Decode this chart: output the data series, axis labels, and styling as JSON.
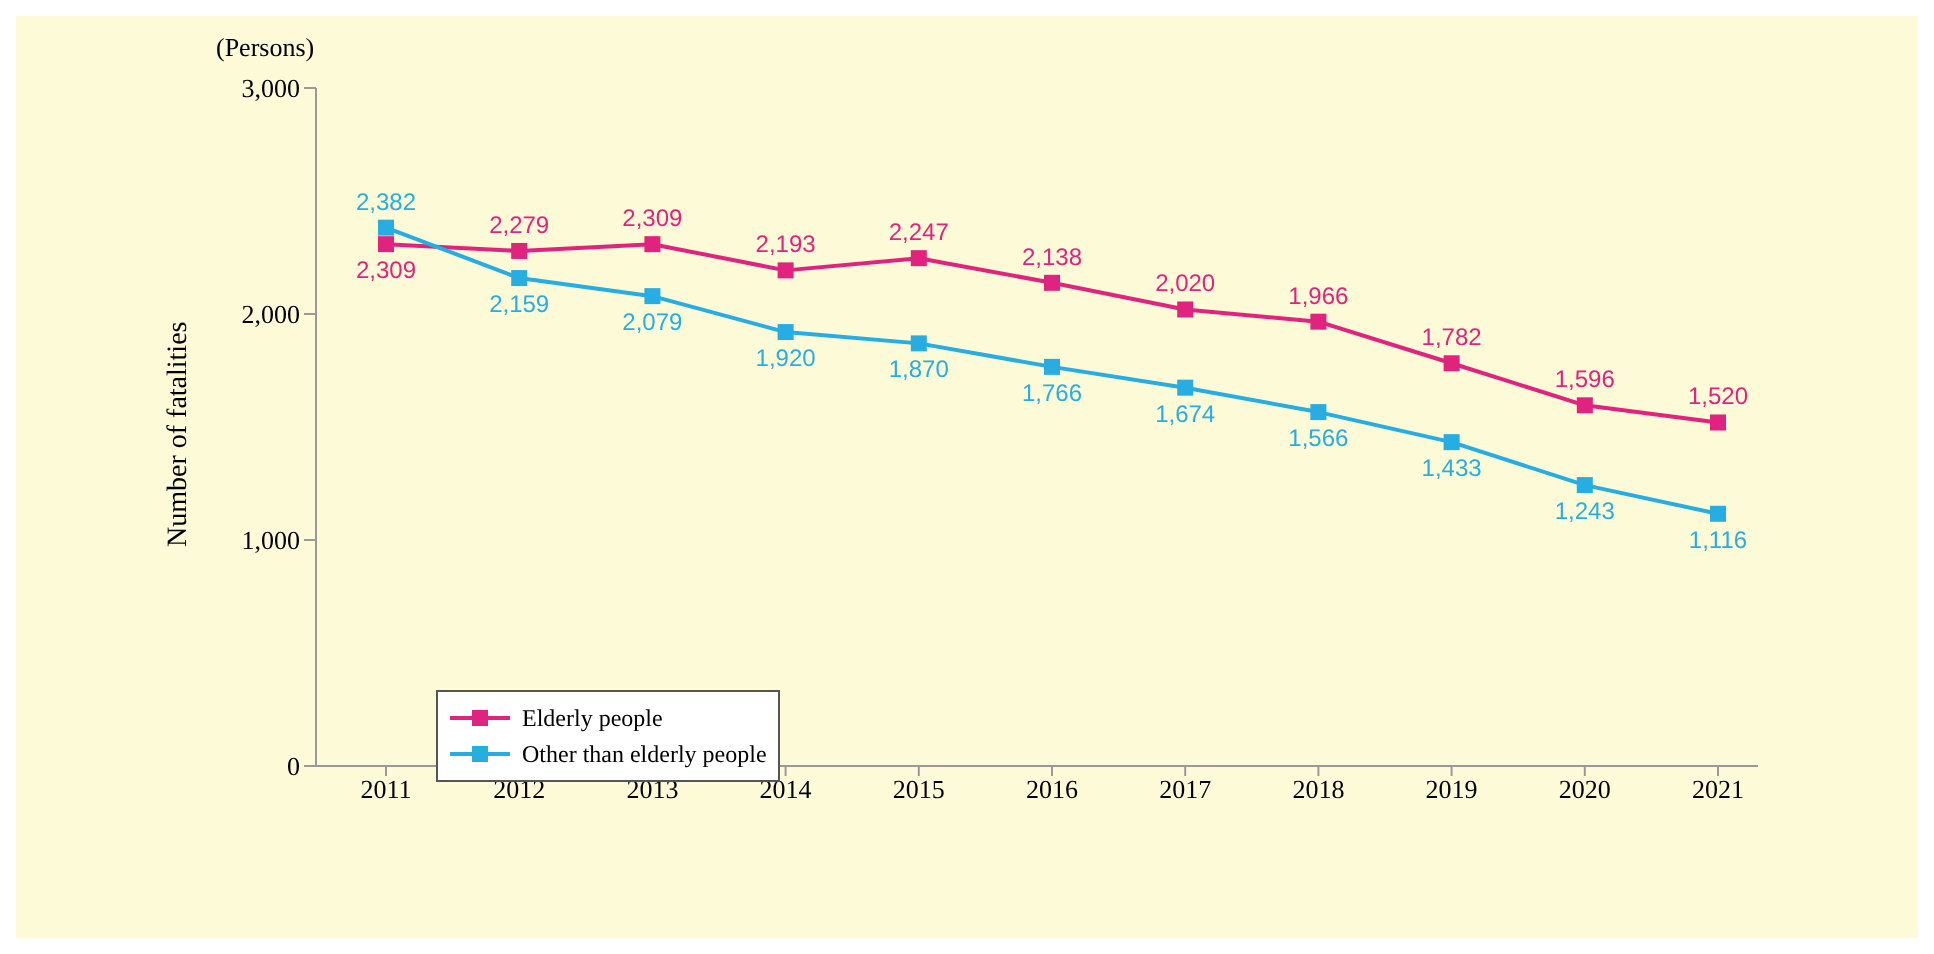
{
  "chart_data": {
    "type": "line",
    "ylabel": "Number of fatalities",
    "annotations": [
      "(Persons)"
    ],
    "categories": [
      "2011",
      "2012",
      "2013",
      "2014",
      "2015",
      "2016",
      "2017",
      "2018",
      "2019",
      "2020",
      "2021"
    ],
    "series": [
      {
        "name": "Elderly people",
        "color": "#e0237f",
        "values": [
          2309,
          2279,
          2309,
          2193,
          2247,
          2138,
          2020,
          1966,
          1782,
          1596,
          1520
        ],
        "value_labels": [
          "2,309",
          "2,279",
          "2,309",
          "2,193",
          "2,247",
          "2,138",
          "2,020",
          "1,966",
          "1,782",
          "1,596",
          "1,520"
        ]
      },
      {
        "name": "Other than elderly people",
        "color": "#27ade2",
        "values": [
          2382,
          2159,
          2079,
          1920,
          1870,
          1766,
          1674,
          1566,
          1433,
          1243,
          1116
        ],
        "value_labels": [
          "2,382",
          "2,159",
          "2,079",
          "1,920",
          "1,870",
          "1,766",
          "1,674",
          "1,566",
          "1,433",
          "1,243",
          "1,116"
        ]
      }
    ],
    "ylim": [
      0,
      3000
    ],
    "yticks": [
      0,
      {
        "value": 1000,
        "label": "1,000"
      },
      {
        "value": 2000,
        "label": "2,000"
      },
      {
        "value": 3000,
        "label": "3,000"
      }
    ],
    "grid": false,
    "legend": "bottom left",
    "marker": "square",
    "line_style": "solid"
  }
}
